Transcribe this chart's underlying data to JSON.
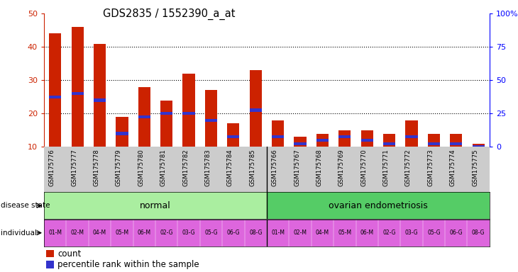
{
  "title": "GDS2835 / 1552390_a_at",
  "samples": [
    "GSM175776",
    "GSM175777",
    "GSM175778",
    "GSM175779",
    "GSM175780",
    "GSM175781",
    "GSM175782",
    "GSM175783",
    "GSM175784",
    "GSM175785",
    "GSM175766",
    "GSM175767",
    "GSM175768",
    "GSM175769",
    "GSM175770",
    "GSM175771",
    "GSM175772",
    "GSM175773",
    "GSM175774",
    "GSM175775"
  ],
  "counts": [
    44,
    46,
    41,
    19,
    28,
    24,
    32,
    27,
    17,
    33,
    18,
    13,
    14,
    15,
    15,
    14,
    18,
    14,
    14,
    11
  ],
  "percentile_values": [
    25,
    26,
    24,
    14,
    19,
    20,
    20,
    18,
    13,
    21,
    13,
    11,
    12,
    13,
    12,
    11,
    13,
    11,
    11,
    10
  ],
  "bar_color": "#cc2200",
  "blue_color": "#3333cc",
  "ymin": 10,
  "ymax": 50,
  "yticks_left": [
    10,
    20,
    30,
    40,
    50
  ],
  "yticks_right": [
    0,
    25,
    50,
    75,
    100
  ],
  "ytick_right_labels": [
    "0",
    "25",
    "50",
    "75",
    "100%"
  ],
  "disease_state_colors": [
    "#aaeea0",
    "#55cc66"
  ],
  "individual_color": "#dd66dd",
  "bar_width": 0.55,
  "background_color": "#ffffff",
  "tick_area_color": "#cccccc",
  "left_label_color": "#000000"
}
